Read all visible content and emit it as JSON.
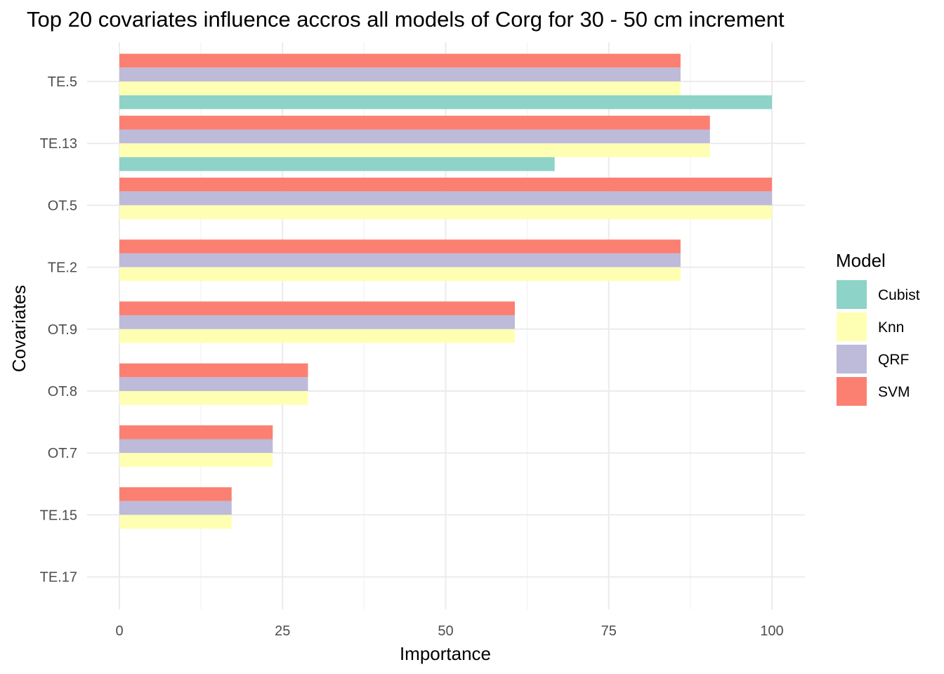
{
  "chart_data": {
    "type": "bar",
    "orientation": "horizontal",
    "title": "Top 20 covariates influence accros all models of Corg for 30 - 50 cm increment",
    "xlabel": "Importance",
    "ylabel": "Covariates",
    "xlim": [
      -2.5,
      105
    ],
    "xticks": [
      "0",
      "25",
      "50",
      "75",
      "100"
    ],
    "xtick_values": [
      0,
      25,
      50,
      75,
      100
    ],
    "grid": true,
    "legend_title": "Model",
    "legend_position": "right",
    "categories": [
      "TE.5",
      "TE.13",
      "OT.5",
      "TE.2",
      "OT.9",
      "OT.8",
      "OT.7",
      "TE.15",
      "TE.17"
    ],
    "series": [
      {
        "name": "Cubist",
        "color": "#8DD3C7",
        "values": [
          100,
          66.7,
          null,
          null,
          null,
          null,
          null,
          null,
          null
        ]
      },
      {
        "name": "Knn",
        "color": "#FFFFB3",
        "values": [
          86,
          90.5,
          100,
          86,
          60.6,
          28.9,
          23.5,
          17.2,
          0
        ]
      },
      {
        "name": "QRF",
        "color": "#BEBADA",
        "values": [
          86,
          90.5,
          100,
          86,
          60.6,
          28.9,
          23.5,
          17.2,
          0
        ]
      },
      {
        "name": "SVM",
        "color": "#FB8072",
        "values": [
          86,
          90.5,
          100,
          86,
          60.6,
          28.9,
          23.5,
          17.2,
          0
        ]
      }
    ]
  }
}
